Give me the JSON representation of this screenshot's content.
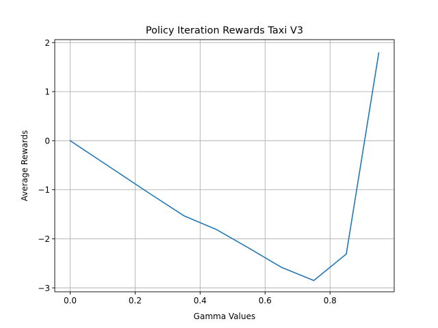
{
  "chart_data": {
    "type": "line",
    "title": "Policy Iteration Rewards Taxi V3",
    "xlabel": "Gamma Values",
    "ylabel": "Average Rewards",
    "xlim": [
      -0.0475,
      0.9975
    ],
    "ylim": [
      -3.08,
      2.06
    ],
    "xticks": [
      0.0,
      0.2,
      0.4,
      0.6,
      0.8
    ],
    "xtick_labels": [
      "0.0",
      "0.2",
      "0.4",
      "0.6",
      "0.8"
    ],
    "yticks": [
      -3,
      -2,
      -1,
      0,
      1,
      2
    ],
    "ytick_labels": [
      "−3",
      "−2",
      "−1",
      "0",
      "1",
      "2"
    ],
    "grid": true,
    "series": [
      {
        "color": "#1f77b4",
        "x": [
          0.0,
          0.05,
          0.15,
          0.25,
          0.35,
          0.45,
          0.55,
          0.65,
          0.75,
          0.85,
          0.95
        ],
        "y": [
          0.0,
          -0.22,
          -0.66,
          -1.1,
          -1.53,
          -1.81,
          -2.19,
          -2.58,
          -2.85,
          -2.31,
          1.79
        ]
      }
    ]
  }
}
